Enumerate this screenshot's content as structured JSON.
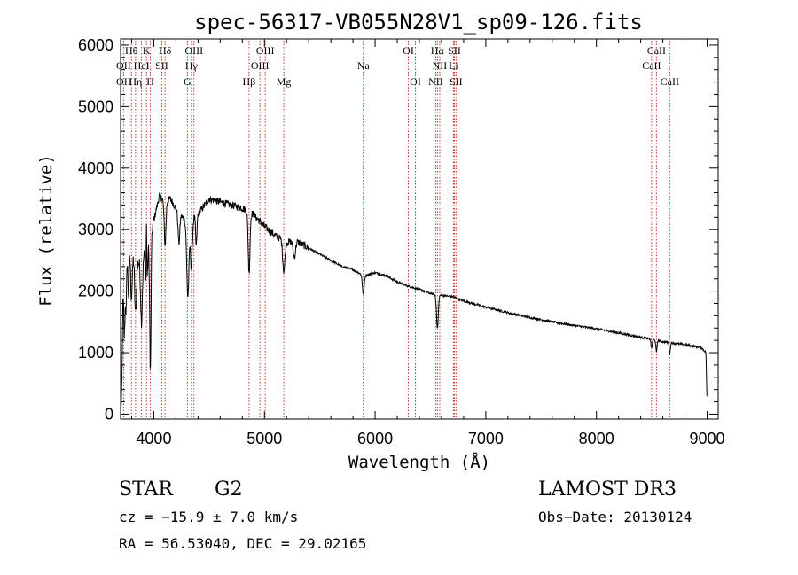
{
  "chart_data": {
    "type": "line",
    "title": "spec-56317-VB055N28V1_sp09-126.fits",
    "xlabel": "Wavelength (Å)",
    "ylabel": "Flux (relative)",
    "xlim": [
      3700,
      9100
    ],
    "ylim": [
      -80,
      6100
    ],
    "xticks": [
      4000,
      5000,
      6000,
      7000,
      8000,
      9000
    ],
    "yticks": [
      0,
      1000,
      2000,
      3000,
      4000,
      5000,
      6000
    ],
    "grid": false,
    "series": [
      {
        "name": "spectrum",
        "color": "#000000",
        "continuum": [
          [
            3700,
            600
          ],
          [
            3720,
            2300
          ],
          [
            3760,
            2900
          ],
          [
            3800,
            2700
          ],
          [
            3850,
            2450
          ],
          [
            3900,
            2550
          ],
          [
            3950,
            2700
          ],
          [
            4000,
            3150
          ],
          [
            4050,
            3550
          ],
          [
            4100,
            3450
          ],
          [
            4150,
            3500
          ],
          [
            4200,
            3350
          ],
          [
            4300,
            3100
          ],
          [
            4400,
            3250
          ],
          [
            4500,
            3500
          ],
          [
            4600,
            3450
          ],
          [
            4700,
            3400
          ],
          [
            4800,
            3350
          ],
          [
            4900,
            3250
          ],
          [
            5000,
            3050
          ],
          [
            5100,
            2900
          ],
          [
            5200,
            2800
          ],
          [
            5300,
            2800
          ],
          [
            5400,
            2700
          ],
          [
            5500,
            2600
          ],
          [
            5600,
            2500
          ],
          [
            5700,
            2400
          ],
          [
            5800,
            2350
          ],
          [
            5900,
            2250
          ],
          [
            6000,
            2300
          ],
          [
            6100,
            2250
          ],
          [
            6200,
            2150
          ],
          [
            6300,
            2080
          ],
          [
            6400,
            2030
          ],
          [
            6500,
            1960
          ],
          [
            6600,
            1930
          ],
          [
            6700,
            1910
          ],
          [
            6800,
            1840
          ],
          [
            7000,
            1740
          ],
          [
            7200,
            1650
          ],
          [
            7400,
            1570
          ],
          [
            7600,
            1500
          ],
          [
            7800,
            1440
          ],
          [
            8000,
            1390
          ],
          [
            8200,
            1320
          ],
          [
            8400,
            1250
          ],
          [
            8600,
            1180
          ],
          [
            8800,
            1130
          ],
          [
            8950,
            1080
          ],
          [
            8990,
            1000
          ],
          [
            9000,
            100
          ]
        ],
        "absorptions": [
          [
            3710,
            1100,
            8
          ],
          [
            3734,
            1200,
            6
          ],
          [
            3750,
            1000,
            6
          ],
          [
            3771,
            900,
            6
          ],
          [
            3798,
            800,
            8
          ],
          [
            3835,
            900,
            8
          ],
          [
            3889,
            1000,
            8
          ],
          [
            3934,
            2000,
            6
          ],
          [
            3969,
            2200,
            6
          ],
          [
            4102,
            700,
            8
          ],
          [
            4227,
            500,
            8
          ],
          [
            4308,
            1200,
            10
          ],
          [
            4340,
            800,
            8
          ],
          [
            4384,
            500,
            6
          ],
          [
            4861,
            1000,
            8
          ],
          [
            5175,
            500,
            10
          ],
          [
            5270,
            250,
            10
          ],
          [
            5893,
            300,
            8
          ],
          [
            6563,
            550,
            8
          ],
          [
            8498,
            150,
            5
          ],
          [
            8542,
            200,
            5
          ],
          [
            8662,
            200,
            5
          ]
        ],
        "emissions": [
          [
            3934,
            2400,
            4
          ]
        ]
      }
    ],
    "line_markers": [
      {
        "name": "OII",
        "wavelength": 3727
      },
      {
        "name": "Hθ",
        "wavelength": 3798
      },
      {
        "name": "Hη",
        "wavelength": 3835
      },
      {
        "name": "HeI",
        "wavelength": 3889
      },
      {
        "name": "K",
        "wavelength": 3934
      },
      {
        "name": "H",
        "wavelength": 3969
      },
      {
        "name": "SII",
        "wavelength": 4072
      },
      {
        "name": "Hδ",
        "wavelength": 4102
      },
      {
        "name": "G",
        "wavelength": 4304
      },
      {
        "name": "Hγ",
        "wavelength": 4340
      },
      {
        "name": "OIII",
        "wavelength": 4363
      },
      {
        "name": "Hβ",
        "wavelength": 4861
      },
      {
        "name": "OIII",
        "wavelength": 4959
      },
      {
        "name": "OIII",
        "wavelength": 5007
      },
      {
        "name": "Mg",
        "wavelength": 5175
      },
      {
        "name": "Na",
        "wavelength": 5893
      },
      {
        "name": "OI",
        "wavelength": 6300
      },
      {
        "name": "OI",
        "wavelength": 6364
      },
      {
        "name": "NII",
        "wavelength": 6548
      },
      {
        "name": "Hα",
        "wavelength": 6563
      },
      {
        "name": "NII",
        "wavelength": 6584
      },
      {
        "name": "Li",
        "wavelength": 6708
      },
      {
        "name": "SII",
        "wavelength": 6717
      },
      {
        "name": "SII",
        "wavelength": 6731
      },
      {
        "name": "CaII",
        "wavelength": 8498
      },
      {
        "name": "CaII",
        "wavelength": 8542
      },
      {
        "name": "CaII",
        "wavelength": 8662
      }
    ],
    "marker_labels": [
      {
        "text": "Hθ",
        "wavelength": 3798,
        "row": 0
      },
      {
        "text": "K",
        "wavelength": 3934,
        "row": 0
      },
      {
        "text": "Hδ",
        "wavelength": 4102,
        "row": 0
      },
      {
        "text": "OIII",
        "wavelength": 4363,
        "row": 0
      },
      {
        "text": "OIII",
        "wavelength": 5007,
        "row": 0
      },
      {
        "text": "OI",
        "wavelength": 6300,
        "row": 0
      },
      {
        "text": "Hα",
        "wavelength": 6563,
        "row": 0
      },
      {
        "text": "SII",
        "wavelength": 6717,
        "row": 0
      },
      {
        "text": "CaII",
        "wavelength": 8542,
        "row": 0
      },
      {
        "text": "OII",
        "wavelength": 3727,
        "row": 1
      },
      {
        "text": "HeI",
        "wavelength": 3889,
        "row": 1
      },
      {
        "text": "SII",
        "wavelength": 4072,
        "row": 1
      },
      {
        "text": "Hγ",
        "wavelength": 4340,
        "row": 1
      },
      {
        "text": "OIII",
        "wavelength": 4959,
        "row": 1
      },
      {
        "text": "NII",
        "wavelength": 6584,
        "row": 1
      },
      {
        "text": "Li",
        "wavelength": 6708,
        "row": 1
      },
      {
        "text": "CaII",
        "wavelength": 8498,
        "row": 1
      },
      {
        "text": "OII",
        "wavelength": 3727,
        "row": 2
      },
      {
        "text": "Hη",
        "wavelength": 3835,
        "row": 2
      },
      {
        "text": "H",
        "wavelength": 3969,
        "row": 2
      },
      {
        "text": "G",
        "wavelength": 4304,
        "row": 2
      },
      {
        "text": "Hβ",
        "wavelength": 4861,
        "row": 2
      },
      {
        "text": "Mg",
        "wavelength": 5175,
        "row": 2
      },
      {
        "text": "Na",
        "wavelength": 5893,
        "row": 1
      },
      {
        "text": "OI",
        "wavelength": 6364,
        "row": 2
      },
      {
        "text": "NII",
        "wavelength": 6548,
        "row": 2
      },
      {
        "text": "SII",
        "wavelength": 6731,
        "row": 2
      },
      {
        "text": "CaII",
        "wavelength": 8662,
        "row": 2
      }
    ],
    "marker_color": "#c0392b"
  },
  "info": {
    "object_class": "STAR",
    "subclass": "G2",
    "survey": "LAMOST DR3",
    "redshift_line": "cz = −15.9 ± 7.0 km/s",
    "obs_date_line": "Obs−Date: 20130124",
    "coords_line": "RA =  56.53040, DEC =  29.02165"
  }
}
